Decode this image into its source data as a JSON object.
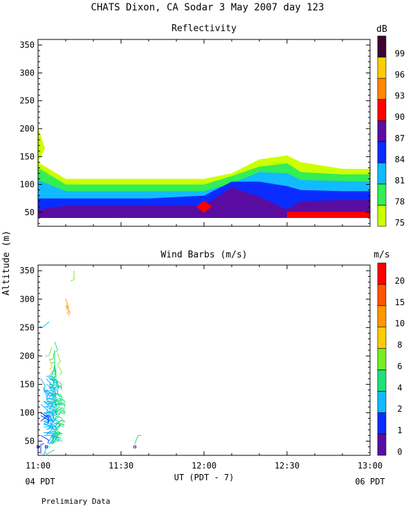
{
  "title": "CHATS Dixon, CA  Sodar   3 May 2007  day 123",
  "footer_note": "Prelimiary Data",
  "y_axis_label": "Altitude (m)",
  "x_axis_label": "UT  (PDT - 7)",
  "x_left_extra": "04 PDT",
  "x_right_extra": "06 PDT",
  "x_ticks": [
    "11:00",
    "11:30",
    "12:00",
    "12:30",
    "13:00"
  ],
  "chart_data": [
    {
      "type": "area",
      "title": "Reflectivity",
      "colorbar_unit": "dB",
      "xlabel": "UT  (PDT - 7)",
      "ylabel": "Altitude (m)",
      "xlim": [
        0,
        120
      ],
      "ylim": [
        25,
        360
      ],
      "y_ticks": [
        50,
        100,
        150,
        200,
        250,
        300,
        350
      ],
      "levels": [
        {
          "label": "75",
          "color": "#ccff00"
        },
        {
          "label": "78",
          "color": "#33ee55"
        },
        {
          "label": "81",
          "color": "#11bbff"
        },
        {
          "label": "84",
          "color": "#0a2cff"
        },
        {
          "label": "87",
          "color": "#5a0da0"
        },
        {
          "label": "90",
          "color": "#ff0000"
        },
        {
          "label": "93",
          "color": "#ff8800"
        },
        {
          "label": "96",
          "color": "#ffcc00"
        },
        {
          "label": "99",
          "color": "#3a0530"
        }
      ],
      "times_min": [
        0,
        10,
        40,
        60,
        70,
        80,
        90,
        95,
        110,
        120
      ],
      "band_tops_m": {
        "75": [
          140,
          110,
          110,
          110,
          120,
          145,
          152,
          140,
          128,
          128
        ],
        "78": [
          130,
          100,
          100,
          100,
          115,
          132,
          138,
          122,
          118,
          118
        ],
        "81": [
          108,
          88,
          88,
          88,
          102,
          122,
          120,
          108,
          106,
          105
        ],
        "84": [
          75,
          75,
          75,
          80,
          105,
          105,
          97,
          90,
          88,
          88
        ],
        "87": [
          55,
          62,
          62,
          62,
          95,
          78,
          55,
          70,
          72,
          72
        ]
      },
      "floor_m": 40,
      "patches": [
        {
          "level": "75",
          "time_min": 0,
          "alt_m": 165,
          "note": "spike"
        },
        {
          "level": "90",
          "time_min": 60,
          "alt_m": 60,
          "note": "diamond"
        },
        {
          "level": "90",
          "time_min": 90,
          "time_end_min": 120,
          "alt_m": 45,
          "note": "strip"
        }
      ]
    },
    {
      "type": "scatter",
      "title": "Wind Barbs (m/s)",
      "colorbar_unit": "m/s",
      "xlim": [
        0,
        120
      ],
      "ylim": [
        25,
        360
      ],
      "y_ticks": [
        50,
        100,
        150,
        200,
        250,
        300,
        350
      ],
      "levels": [
        {
          "label": "0",
          "color": "#5a0da0"
        },
        {
          "label": "1",
          "color": "#0a2cff"
        },
        {
          "label": "2",
          "color": "#11bbff"
        },
        {
          "label": "4",
          "color": "#22e07a"
        },
        {
          "label": "6",
          "color": "#77ee22"
        },
        {
          "label": "8",
          "color": "#ffcc00"
        },
        {
          "label": "10",
          "color": "#ff9900"
        },
        {
          "label": "15",
          "color": "#ff5500"
        },
        {
          "label": "20",
          "color": "#ff0000"
        }
      ],
      "barbs": [
        [
          3,
          40,
          0,
          0
        ],
        [
          6,
          70,
          45,
          5
        ],
        [
          2,
          95,
          120,
          2
        ],
        [
          1,
          115,
          130,
          2
        ],
        [
          2,
          140,
          150,
          2
        ],
        [
          1,
          160,
          150,
          2
        ],
        [
          6,
          180,
          200,
          5
        ],
        [
          6,
          185,
          190,
          5
        ],
        [
          6,
          50,
          30,
          5
        ],
        [
          5,
          70,
          40,
          4
        ],
        [
          6,
          95,
          60,
          5
        ],
        [
          2,
          120,
          130,
          2
        ],
        [
          2,
          145,
          150,
          2
        ],
        [
          5,
          165,
          160,
          4
        ],
        [
          6,
          185,
          170,
          5
        ],
        [
          6,
          35,
          240,
          5
        ],
        [
          13,
          350,
          180,
          6
        ],
        [
          5,
          45,
          20,
          4
        ],
        [
          6,
          65,
          40,
          5
        ],
        [
          6,
          90,
          50,
          5
        ],
        [
          5,
          110,
          60,
          4
        ],
        [
          4,
          130,
          80,
          3
        ],
        [
          6,
          145,
          170,
          5
        ],
        [
          6,
          165,
          190,
          5
        ],
        [
          6,
          180,
          170,
          5
        ],
        [
          6,
          205,
          180,
          5
        ],
        [
          6,
          225,
          160,
          5
        ],
        [
          4,
          195,
          160,
          8
        ],
        [
          6,
          50,
          30,
          5
        ],
        [
          6,
          70,
          50,
          5
        ],
        [
          6,
          95,
          60,
          5
        ],
        [
          6,
          115,
          90,
          5
        ],
        [
          5,
          135,
          100,
          4
        ],
        [
          4,
          160,
          110,
          3
        ],
        [
          5,
          55,
          40,
          4
        ],
        [
          6,
          80,
          60,
          5
        ],
        [
          5,
          105,
          50,
          4
        ],
        [
          5,
          120,
          90,
          4
        ],
        [
          6,
          135,
          120,
          5
        ],
        [
          6,
          160,
          150,
          5
        ],
        [
          6,
          175,
          170,
          5
        ],
        [
          6,
          190,
          180,
          5
        ],
        [
          6,
          210,
          190,
          5
        ],
        [
          35,
          40,
          0,
          0
        ],
        [
          35,
          45,
          20,
          5
        ],
        [
          5,
          85,
          60,
          4
        ],
        [
          6,
          100,
          55,
          5
        ],
        [
          6,
          115,
          80,
          5
        ],
        [
          4,
          145,
          140,
          3
        ],
        [
          5,
          125,
          120,
          4
        ],
        [
          6,
          50,
          20,
          5
        ],
        [
          6,
          75,
          45,
          5
        ],
        [
          6,
          100,
          70,
          5
        ],
        [
          6,
          120,
          80,
          5
        ],
        [
          5,
          145,
          90,
          4
        ],
        [
          4,
          260,
          230,
          3
        ],
        [
          5,
          55,
          20,
          4
        ],
        [
          5,
          80,
          30,
          4
        ],
        [
          5,
          100,
          50,
          4
        ],
        [
          5,
          120,
          70,
          4
        ],
        [
          5,
          140,
          60,
          4
        ],
        [
          3,
          150,
          120,
          3
        ],
        [
          5,
          50,
          20,
          4
        ],
        [
          4,
          75,
          40,
          3
        ],
        [
          5,
          95,
          40,
          4
        ],
        [
          5,
          115,
          50,
          4
        ],
        [
          5,
          215,
          200,
          6
        ],
        [
          10,
          290,
          150,
          10
        ],
        [
          4,
          50,
          30,
          3
        ],
        [
          3,
          80,
          50,
          3
        ],
        [
          3,
          100,
          70,
          3
        ],
        [
          3,
          125,
          90,
          3
        ],
        [
          4,
          145,
          110,
          3
        ],
        [
          5,
          45,
          60,
          4
        ],
        [
          1,
          28,
          0,
          1
        ],
        [
          2,
          60,
          90,
          2
        ],
        [
          2,
          80,
          100,
          2
        ],
        [
          2,
          95,
          110,
          2
        ],
        [
          3,
          120,
          100,
          3
        ],
        [
          3,
          140,
          100,
          3
        ],
        [
          5,
          50,
          40,
          4
        ],
        [
          2,
          65,
          100,
          2
        ],
        [
          2,
          80,
          110,
          2
        ],
        [
          2,
          100,
          120,
          2
        ],
        [
          2,
          120,
          130,
          2
        ],
        [
          2,
          140,
          130,
          2
        ],
        [
          3,
          160,
          140,
          3
        ],
        [
          3,
          40,
          0,
          0
        ],
        [
          1,
          60,
          120,
          1
        ],
        [
          2,
          85,
          110,
          2
        ],
        [
          2,
          100,
          100,
          2
        ],
        [
          2,
          120,
          110,
          2
        ],
        [
          2,
          140,
          110,
          2
        ],
        [
          4,
          165,
          120,
          3
        ],
        [
          5,
          45,
          40,
          4
        ],
        [
          3,
          70,
          70,
          3
        ],
        [
          2,
          85,
          80,
          2
        ],
        [
          2,
          100,
          90,
          2
        ],
        [
          3,
          115,
          80,
          3
        ],
        [
          3,
          125,
          100,
          3
        ],
        [
          4,
          145,
          110,
          3
        ],
        [
          5,
          50,
          30,
          4
        ],
        [
          4,
          75,
          60,
          3
        ],
        [
          3,
          100,
          80,
          3
        ],
        [
          3,
          120,
          90,
          3
        ],
        [
          4,
          145,
          110,
          3
        ],
        [
          3,
          165,
          120,
          3
        ],
        [
          4,
          45,
          40,
          3
        ],
        [
          3,
          70,
          60,
          3
        ],
        [
          2,
          95,
          90,
          2
        ],
        [
          2,
          110,
          80,
          2
        ],
        [
          3,
          130,
          90,
          3
        ],
        [
          4,
          150,
          100,
          3
        ],
        [
          7,
          185,
          150,
          7
        ],
        [
          7,
          205,
          160,
          7
        ],
        [
          2,
          25,
          20,
          2
        ],
        [
          3,
          60,
          40,
          3
        ],
        [
          2,
          80,
          60,
          2
        ],
        [
          3,
          95,
          70,
          3
        ],
        [
          3,
          115,
          90,
          3
        ],
        [
          3,
          135,
          100,
          3
        ],
        [
          5,
          165,
          140,
          4
        ],
        [
          5,
          45,
          40,
          4
        ],
        [
          2,
          75,
          90,
          2
        ],
        [
          2,
          90,
          100,
          2
        ],
        [
          3,
          110,
          110,
          3
        ],
        [
          3,
          140,
          130,
          3
        ],
        [
          4,
          160,
          120,
          3
        ],
        [
          5,
          45,
          40,
          4
        ],
        [
          2,
          65,
          90,
          2
        ],
        [
          2,
          80,
          100,
          2
        ],
        [
          5,
          115,
          140,
          4
        ],
        [
          5,
          135,
          150,
          4
        ],
        [
          4,
          155,
          140,
          3
        ],
        [
          6,
          160,
          130,
          5
        ],
        [
          4,
          45,
          60,
          3
        ],
        [
          3,
          65,
          80,
          3
        ],
        [
          1,
          85,
          50,
          1
        ],
        [
          1,
          100,
          120,
          1
        ],
        [
          3,
          120,
          90,
          3
        ],
        [
          2,
          140,
          110,
          2
        ],
        [
          0,
          40,
          0,
          0
        ],
        [
          4,
          60,
          100,
          3
        ],
        [
          1,
          95,
          120,
          1
        ],
        [
          3,
          125,
          140,
          3
        ],
        [
          10,
          300,
          160,
          10
        ],
        [
          3,
          105,
          120,
          3
        ]
      ]
    }
  ]
}
